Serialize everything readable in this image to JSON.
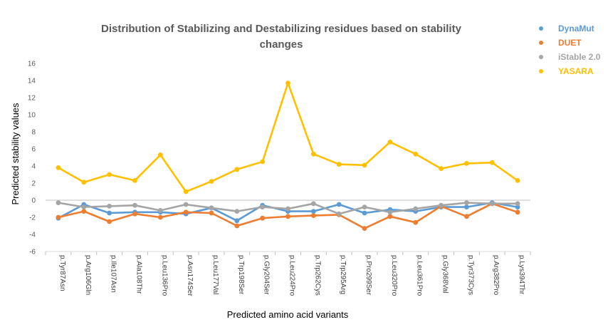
{
  "chart_data": {
    "type": "line",
    "title": "Distribution of Stabilizing and Destabilizing residues based on stability changes",
    "title_lines": [
      "Distribution of Stabilizing and Destabilizing residues based on stability",
      "changes"
    ],
    "xlabel": "Predicted amino acid variants",
    "ylabel": "Predicted stability values",
    "ylim": [
      -6,
      16
    ],
    "yticks": [
      "16",
      "14",
      "12",
      "10",
      "8",
      "6",
      "4",
      "2",
      "0",
      "-2",
      "-4",
      "-6"
    ],
    "grid": false,
    "legend_position": "top-right",
    "categories": [
      "p.Tyr87Asn",
      "p.Arg106Gln",
      "p.Ile107Asn",
      "p.Ala108Thr",
      "p.Leu136Pro",
      "p.Asn174Ser",
      "p.Leu177Val",
      "p.Trp198Ser",
      "p.Gly204Ser",
      "p.Leu224Pro",
      "p.Trp262Cys",
      "p.Trp295Arg",
      "p.Pro299Ser",
      "p.Leu320Pro",
      "p.Leu361Pro",
      "p.Gly368Val",
      "p.Tyr373Cys",
      "p.Arg382Pro",
      "p.Lys394Thr"
    ],
    "series": [
      {
        "name": "DynaMut",
        "color": "#5B9BD5",
        "values": [
          -2.1,
          -0.5,
          -1.5,
          -1.4,
          -1.4,
          -1.6,
          -0.9,
          -2.4,
          -0.6,
          -1.3,
          -1.3,
          -0.5,
          -1.5,
          -1.1,
          -1.3,
          -0.8,
          -0.8,
          -0.3,
          -0.8
        ]
      },
      {
        "name": "DUET",
        "color": "#ED7D31",
        "values": [
          -2.0,
          -1.3,
          -2.5,
          -1.6,
          -2.0,
          -1.4,
          -1.5,
          -3.0,
          -2.1,
          -1.9,
          -1.8,
          -1.7,
          -3.3,
          -1.9,
          -2.6,
          -0.7,
          -1.9,
          -0.4,
          -1.4
        ]
      },
      {
        "name": "iStable 2.0",
        "color": "#A5A5A5",
        "values": [
          -0.3,
          -0.8,
          -0.7,
          -0.6,
          -1.2,
          -0.5,
          -0.9,
          -1.3,
          -0.8,
          -1.0,
          -0.4,
          -1.6,
          -0.8,
          -1.4,
          -1.0,
          -0.6,
          -0.3,
          -0.4,
          -0.4
        ]
      },
      {
        "name": "YASARA",
        "color": "#FFC000",
        "values": [
          3.8,
          2.1,
          3.0,
          2.3,
          5.3,
          1.0,
          2.2,
          3.6,
          4.5,
          13.7,
          5.4,
          4.2,
          4.1,
          6.8,
          5.4,
          3.7,
          4.3,
          4.4,
          2.3
        ]
      }
    ]
  }
}
